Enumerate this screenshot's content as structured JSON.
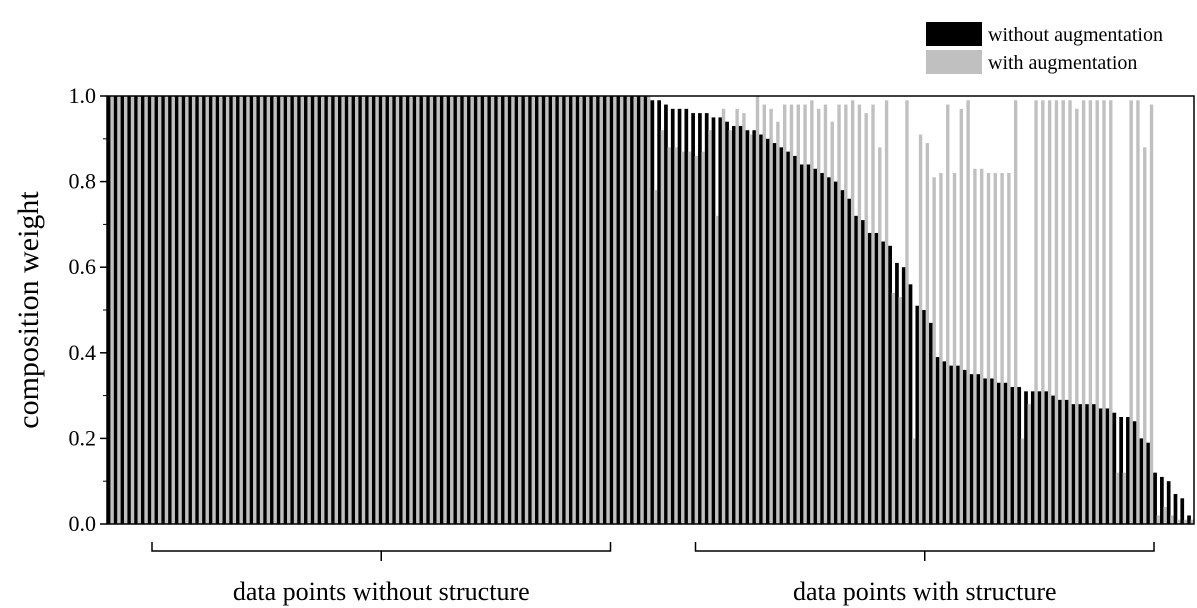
{
  "chart_data": {
    "type": "bar",
    "title": "",
    "xlabel": "",
    "ylabel": "composition weight",
    "ylim": [
      0,
      1.0
    ],
    "yticks": [
      "0.0",
      "0.2",
      "0.4",
      "0.6",
      "0.8",
      "1.0"
    ],
    "grid": false,
    "legend_position": "top-right",
    "series": [
      {
        "name": "without augmentation",
        "color": "#000000",
        "values": [
          1,
          1,
          1,
          1,
          1,
          1,
          1,
          1,
          1,
          1,
          1,
          1,
          1,
          1,
          1,
          1,
          1,
          1,
          1,
          1,
          1,
          1,
          1,
          1,
          1,
          1,
          1,
          1,
          1,
          1,
          1,
          1,
          1,
          1,
          1,
          1,
          1,
          1,
          1,
          1,
          1,
          1,
          1,
          1,
          1,
          1,
          1,
          1,
          1,
          1,
          1,
          1,
          1,
          1,
          1,
          1,
          1,
          1,
          1,
          1,
          1,
          1,
          1,
          1,
          1,
          1,
          1,
          1,
          1,
          1,
          1,
          1,
          1,
          1,
          1,
          1,
          1,
          1,
          1,
          1,
          0.99,
          0.99,
          0.98,
          0.97,
          0.97,
          0.97,
          0.96,
          0.96,
          0.96,
          0.95,
          0.95,
          0.94,
          0.93,
          0.93,
          0.92,
          0.92,
          0.91,
          0.9,
          0.89,
          0.88,
          0.87,
          0.86,
          0.84,
          0.84,
          0.83,
          0.82,
          0.81,
          0.8,
          0.78,
          0.76,
          0.72,
          0.71,
          0.68,
          0.68,
          0.66,
          0.65,
          0.61,
          0.6,
          0.56,
          0.51,
          0.5,
          0.47,
          0.39,
          0.38,
          0.37,
          0.37,
          0.36,
          0.35,
          0.35,
          0.34,
          0.34,
          0.33,
          0.33,
          0.32,
          0.32,
          0.31,
          0.31,
          0.31,
          0.31,
          0.3,
          0.29,
          0.29,
          0.28,
          0.28,
          0.28,
          0.28,
          0.27,
          0.27,
          0.26,
          0.25,
          0.25,
          0.24,
          0.2,
          0.19,
          0.12,
          0.11,
          0.1,
          0.07,
          0.06,
          0.02
        ]
      },
      {
        "name": "with augmentation",
        "color": "#c0c0c0",
        "values": [
          1,
          1,
          1,
          1,
          1,
          1,
          1,
          1,
          1,
          1,
          1,
          1,
          1,
          1,
          1,
          1,
          1,
          1,
          1,
          1,
          1,
          1,
          1,
          1,
          1,
          1,
          1,
          1,
          1,
          1,
          1,
          1,
          1,
          1,
          1,
          1,
          1,
          1,
          1,
          1,
          1,
          1,
          1,
          1,
          1,
          1,
          1,
          1,
          1,
          1,
          1,
          1,
          1,
          1,
          1,
          1,
          1,
          1,
          1,
          1,
          1,
          1,
          1,
          1,
          1,
          1,
          1,
          1,
          1,
          1,
          1,
          1,
          1,
          1,
          1,
          1,
          1,
          1,
          1,
          1,
          0.78,
          0.92,
          0.88,
          0.88,
          0.87,
          0.87,
          0.86,
          0.87,
          0.92,
          0.72,
          0.97,
          0.92,
          0.97,
          0.96,
          0.91,
          1,
          0.98,
          0.97,
          0.94,
          0.98,
          0.98,
          0.98,
          0.98,
          0.99,
          0.97,
          0.98,
          0.94,
          0.98,
          0.98,
          0.99,
          0.98,
          0.96,
          0.98,
          0.88,
          0.99,
          0.54,
          0.53,
          0.99,
          0.2,
          0.91,
          0.89,
          0.81,
          0.82,
          0.98,
          0.82,
          0.97,
          0.99,
          0.83,
          0.83,
          0.82,
          0.82,
          0.82,
          0.82,
          0.99,
          0.2,
          0.28,
          0.99,
          0.99,
          0.99,
          0.99,
          0.99,
          0.99,
          0.97,
          0.99,
          0.99,
          0.99,
          0.99,
          0.99,
          0.12,
          0.12,
          0.99,
          0.99,
          0.88,
          0.98,
          0.02,
          0.04,
          0.02,
          0.01,
          0.01,
          0.01
        ]
      }
    ],
    "groups": [
      {
        "label": "data points without structure",
        "start_index": 0,
        "end_index": 79
      },
      {
        "label": "data points with structure",
        "start_index": 80,
        "end_index": 159
      }
    ]
  }
}
